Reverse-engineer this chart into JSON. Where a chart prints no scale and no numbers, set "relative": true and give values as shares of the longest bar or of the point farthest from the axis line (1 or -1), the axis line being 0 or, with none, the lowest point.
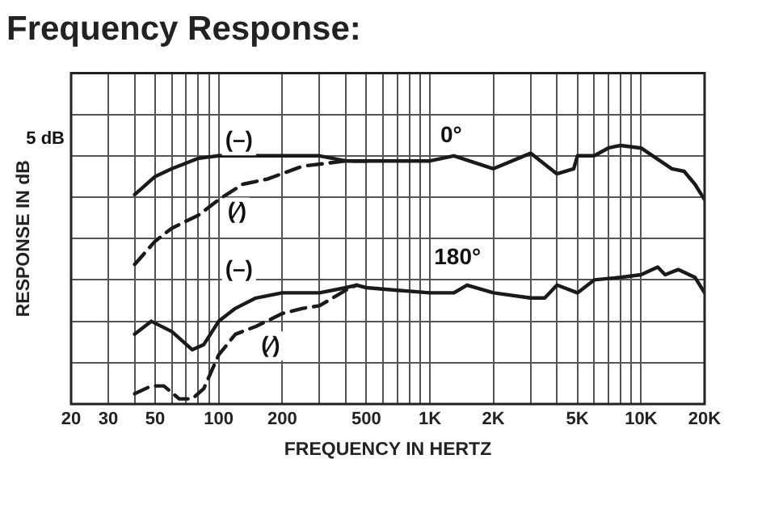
{
  "chart_data": {
    "type": "line",
    "title": "Frequency Response:",
    "xlabel": "FREQUENCY IN HERTZ",
    "ylabel": "RESPONSE IN dB",
    "relative": true,
    "log": "x",
    "grid": true,
    "legend": false,
    "marker": "none",
    "xlim": [
      20,
      20000
    ],
    "xticks": [
      20,
      30,
      {
        "value": 40,
        "label": null
      },
      50,
      {
        "value": 60,
        "label": null
      },
      {
        "value": 70,
        "label": null
      },
      {
        "value": 80,
        "label": null
      },
      {
        "value": 90,
        "label": null
      },
      100,
      200,
      {
        "value": 300,
        "label": null
      },
      {
        "value": 400,
        "label": null
      },
      500,
      {
        "value": 600,
        "label": null
      },
      {
        "value": 700,
        "label": null
      },
      {
        "value": 800,
        "label": null
      },
      {
        "value": 900,
        "label": null
      },
      {
        "value": 1000,
        "label": "1K"
      },
      {
        "value": 2000,
        "label": "2K"
      },
      {
        "value": 3000,
        "label": null
      },
      {
        "value": 4000,
        "label": null
      },
      {
        "value": 5000,
        "label": "5K"
      },
      {
        "value": 6000,
        "label": null
      },
      {
        "value": 7000,
        "label": null
      },
      {
        "value": 8000,
        "label": null
      },
      {
        "value": 9000,
        "label": null
      },
      {
        "value": 10000,
        "label": "10K"
      },
      {
        "value": 20000,
        "label": "20K"
      }
    ],
    "series": [
      {
        "color": "#1a1a1a",
        "line_style": "solid",
        "x": [
          40,
          50,
          60,
          80,
          100,
          150,
          200,
          300,
          400,
          500,
          1000,
          1300,
          2000,
          3000,
          4000,
          4800,
          5000,
          6000,
          7000,
          8000,
          10000,
          14000,
          16000,
          18000,
          20000
        ],
        "values": [
          0.81,
          0.88,
          0.91,
          0.95,
          0.96,
          0.96,
          0.96,
          0.96,
          0.94,
          0.94,
          0.94,
          0.96,
          0.91,
          0.97,
          0.89,
          0.91,
          0.96,
          0.96,
          0.99,
          1,
          0.99,
          0.91,
          0.9,
          0.85,
          0.79
        ]
      },
      {
        "color": "#1a1a1a",
        "line_style": "dashed",
        "x": [
          40,
          50,
          60,
          80,
          100,
          130,
          170,
          250,
          400,
          500
        ],
        "values": [
          0.54,
          0.63,
          0.68,
          0.73,
          0.79,
          0.85,
          0.87,
          0.92,
          0.94,
          0.94
        ]
      },
      {
        "color": "#1a1a1a",
        "line_style": "solid",
        "x": [
          40,
          48,
          60,
          75,
          85,
          100,
          120,
          150,
          200,
          300,
          400,
          450,
          500,
          700,
          1000,
          1300,
          1500,
          2000,
          3000,
          3500,
          4000,
          5000,
          6000,
          8000,
          10000,
          12000,
          13000,
          15000,
          18000,
          20000
        ],
        "values": [
          0.27,
          0.32,
          0.28,
          0.21,
          0.23,
          0.32,
          0.37,
          0.41,
          0.43,
          0.43,
          0.45,
          0.46,
          0.45,
          0.44,
          0.43,
          0.43,
          0.46,
          0.43,
          0.41,
          0.41,
          0.46,
          0.43,
          0.48,
          0.49,
          0.5,
          0.53,
          0.5,
          0.52,
          0.49,
          0.43
        ]
      },
      {
        "color": "#1a1a1a",
        "line_style": "dashed",
        "x": [
          40,
          48,
          55,
          65,
          75,
          85,
          100,
          120,
          150,
          200,
          250,
          300,
          400,
          450
        ],
        "values": [
          0.04,
          0.07,
          0.07,
          0.02,
          0.02,
          0.06,
          0.19,
          0.27,
          0.3,
          0.35,
          0.37,
          0.38,
          0.44,
          0.46
        ]
      }
    ],
    "annotations": [
      "5 dB",
      "0°",
      "180°",
      "(–)",
      "(⁄)",
      "(–)",
      "(⁄)"
    ]
  }
}
